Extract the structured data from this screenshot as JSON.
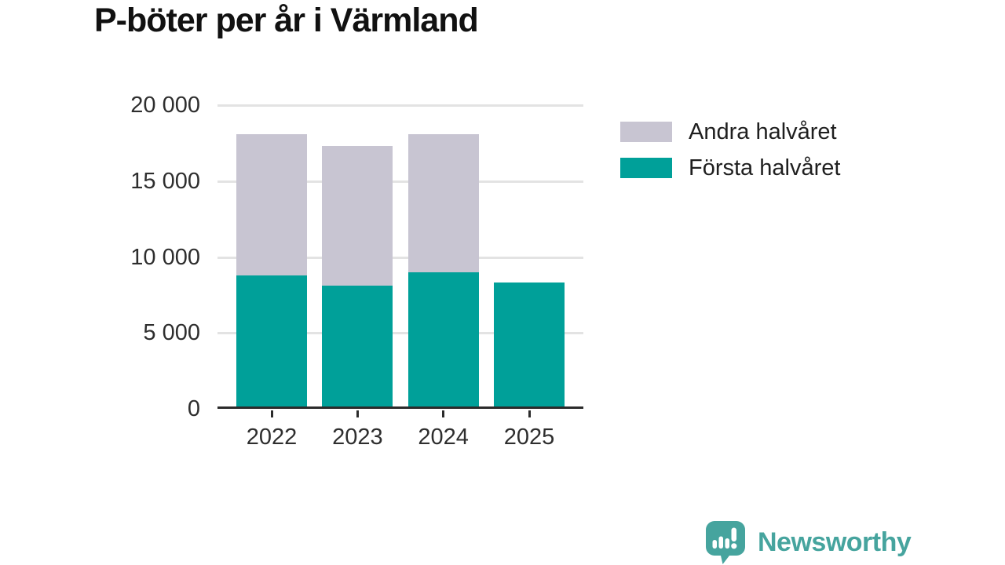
{
  "title": "P-böter per år i Värmland",
  "chart_data": {
    "type": "bar",
    "stacked": true,
    "title": "P-böter per år i Värmland",
    "categories": [
      "2022",
      "2023",
      "2024",
      "2025"
    ],
    "series": [
      {
        "name": "Första halvåret",
        "color": "#00a099",
        "values": [
          8800,
          8100,
          9000,
          8300
        ]
      },
      {
        "name": "Andra halvåret",
        "color": "#c8c5d2",
        "values": [
          9300,
          9200,
          9100,
          0
        ]
      }
    ],
    "ylim": [
      0,
      20000
    ],
    "yticks": [
      0,
      5000,
      10000,
      15000,
      20000
    ],
    "ytick_labels": [
      "0",
      "5 000",
      "10 000",
      "15 000",
      "20 000"
    ],
    "xlabel": "",
    "ylabel": "",
    "grid": "horizontal",
    "legend_position": "right-top"
  },
  "legend": {
    "items": [
      {
        "label": "Andra halvåret",
        "color": "#c8c5d2"
      },
      {
        "label": "Första halvåret",
        "color": "#00a099"
      }
    ]
  },
  "branding": {
    "name": "Newsworthy",
    "color": "#46a49e",
    "icon": "bar-chart-speech-bubble-icon"
  },
  "colors": {
    "background": "#ffffff",
    "axis": "#2b2b2b",
    "gridline": "#e3e3e3",
    "tick": "#2b2b2b",
    "label_text": "#2e2e2e",
    "title_text": "#111111"
  }
}
